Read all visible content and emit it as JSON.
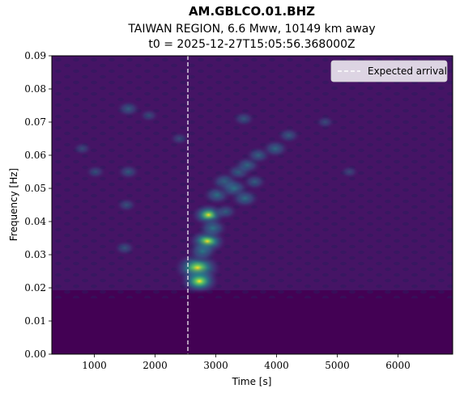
{
  "chart_data": {
    "type": "heatmap",
    "title": "AM.GBLCO.01.BHZ",
    "subtitle_line1": "TAIWAN REGION, 6.6 Mww, 10149 km away",
    "subtitle_line2": "t0 = 2025-12-27T15:05:56.368000Z",
    "xlabel": "Time [s]",
    "ylabel": "Frequency [Hz]",
    "xlim": [
      300,
      6900
    ],
    "ylim": [
      0.0,
      0.09
    ],
    "xticks": [
      1000,
      2000,
      3000,
      4000,
      5000,
      6000
    ],
    "xtick_labels": [
      "1000",
      "2000",
      "3000",
      "4000",
      "5000",
      "6000"
    ],
    "yticks": [
      0.0,
      0.01,
      0.02,
      0.03,
      0.04,
      0.05,
      0.06,
      0.07,
      0.08,
      0.09
    ],
    "ytick_labels": [
      "0.00",
      "0.01",
      "0.02",
      "0.03",
      "0.04",
      "0.05",
      "0.06",
      "0.07",
      "0.08",
      "0.09"
    ],
    "colormap": "viridis",
    "expected_arrival_s": 2540,
    "legend": {
      "label": "Expected arrival",
      "placement": "top-right"
    },
    "hotspots": [
      {
        "t": 2700,
        "f": 0.026,
        "intensity": 1.0
      },
      {
        "t": 2730,
        "f": 0.022,
        "intensity": 0.75
      },
      {
        "t": 2860,
        "f": 0.034,
        "intensity": 0.7
      },
      {
        "t": 2880,
        "f": 0.042,
        "intensity": 0.6
      },
      {
        "t": 2950,
        "f": 0.038,
        "intensity": 0.5
      },
      {
        "t": 2780,
        "f": 0.031,
        "intensity": 0.5
      },
      {
        "t": 3020,
        "f": 0.048,
        "intensity": 0.45
      },
      {
        "t": 3150,
        "f": 0.052,
        "intensity": 0.45
      },
      {
        "t": 3300,
        "f": 0.05,
        "intensity": 0.5
      },
      {
        "t": 3480,
        "f": 0.047,
        "intensity": 0.45
      },
      {
        "t": 3380,
        "f": 0.055,
        "intensity": 0.35
      },
      {
        "t": 3520,
        "f": 0.057,
        "intensity": 0.38
      },
      {
        "t": 3700,
        "f": 0.06,
        "intensity": 0.35
      },
      {
        "t": 3980,
        "f": 0.062,
        "intensity": 0.4
      },
      {
        "t": 4200,
        "f": 0.066,
        "intensity": 0.28
      },
      {
        "t": 3640,
        "f": 0.052,
        "intensity": 0.3
      },
      {
        "t": 3160,
        "f": 0.043,
        "intensity": 0.3
      },
      {
        "t": 3460,
        "f": 0.071,
        "intensity": 0.25
      },
      {
        "t": 1560,
        "f": 0.074,
        "intensity": 0.3
      },
      {
        "t": 1560,
        "f": 0.055,
        "intensity": 0.25
      },
      {
        "t": 1500,
        "f": 0.032,
        "intensity": 0.22
      },
      {
        "t": 1530,
        "f": 0.045,
        "intensity": 0.2
      },
      {
        "t": 1020,
        "f": 0.055,
        "intensity": 0.18
      },
      {
        "t": 800,
        "f": 0.062,
        "intensity": 0.15
      },
      {
        "t": 1900,
        "f": 0.072,
        "intensity": 0.15
      },
      {
        "t": 4800,
        "f": 0.07,
        "intensity": 0.15
      },
      {
        "t": 5200,
        "f": 0.055,
        "intensity": 0.12
      },
      {
        "t": 2400,
        "f": 0.065,
        "intensity": 0.15
      }
    ]
  }
}
